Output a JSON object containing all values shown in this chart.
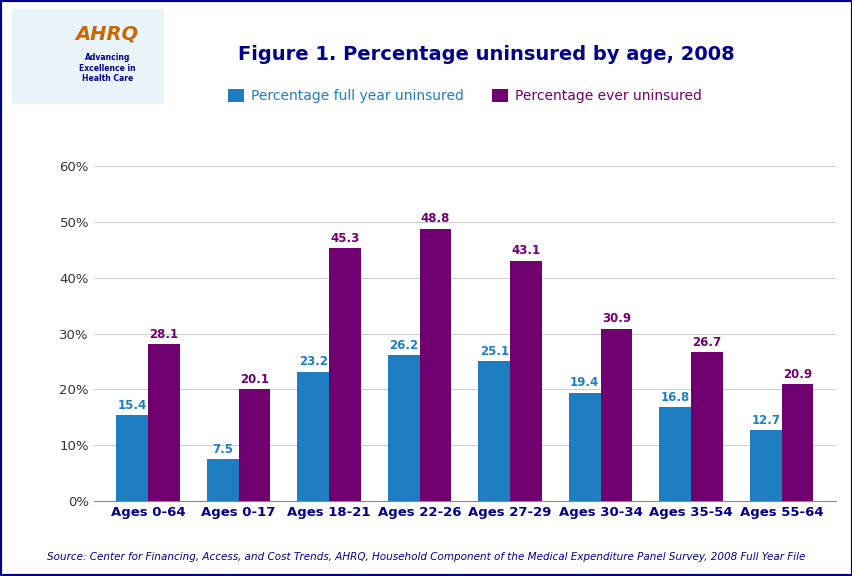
{
  "categories": [
    "Ages 0-64",
    "Ages 0-17",
    "Ages 18-21",
    "Ages 22-26",
    "Ages 27-29",
    "Ages 30-34",
    "Ages 35-54",
    "Ages 55-64"
  ],
  "full_year": [
    15.4,
    7.5,
    23.2,
    26.2,
    25.1,
    19.4,
    16.8,
    12.7
  ],
  "ever_uninsured": [
    28.1,
    20.1,
    45.3,
    48.8,
    43.1,
    30.9,
    26.7,
    20.9
  ],
  "color_full_year": "#1F7EC2",
  "color_ever_uninsured": "#700070",
  "title": "Figure 1. Percentage uninsured by age, 2008",
  "legend_label_1": "Percentage full year uninsured",
  "legend_label_2": "Percentage ever uninsured",
  "ylabel_ticks": [
    "0%",
    "10%",
    "20%",
    "30%",
    "40%",
    "50%",
    "60%"
  ],
  "ytick_values": [
    0,
    10,
    20,
    30,
    40,
    50,
    60
  ],
  "ylim": [
    0,
    65
  ],
  "source_text": "Source: Center for Financing, Access, and Cost Trends, AHRQ, Household Component of the Medical Expenditure Panel Survey, 2008 Full Year File",
  "title_color": "#00008B",
  "title_fontsize": 14,
  "bar_width": 0.35,
  "blue_border_color": "#00008B",
  "blue_line_color": "#00008B",
  "label_fontsize": 8.5,
  "tick_fontsize": 9.5,
  "legend_fontsize": 10
}
